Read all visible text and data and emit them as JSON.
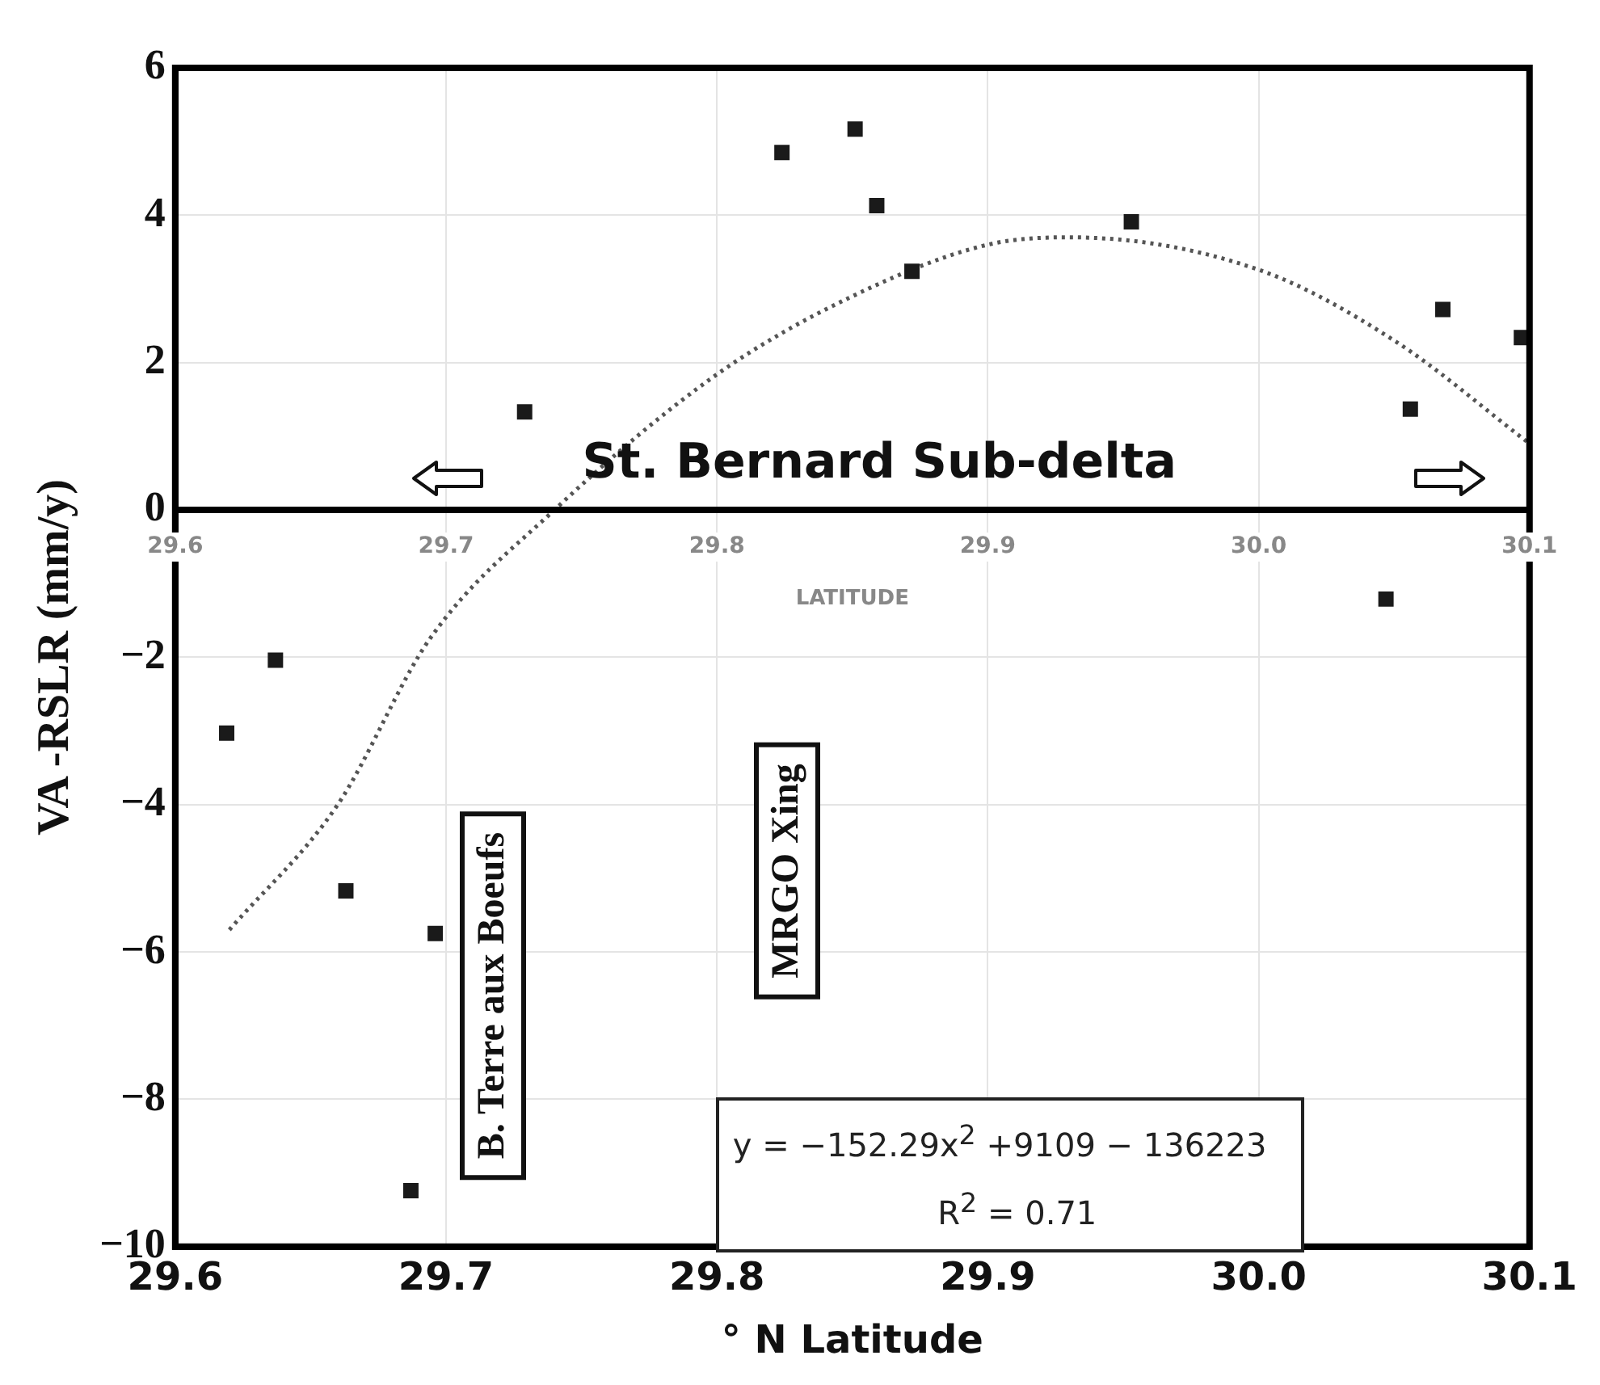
{
  "chart_data": {
    "type": "scatter",
    "xlabel": "° N Latitude",
    "ylabel": "VA -RSLR (mm/y)",
    "x2label": "LATITUDE",
    "xlim": [
      29.6,
      30.1
    ],
    "xticks": [
      29.6,
      29.7,
      29.8,
      29.9,
      {
        "value": 30,
        "label": "30.0"
      },
      30.1
    ],
    "x2lim": [
      29.6,
      30.1
    ],
    "x2ticks": [
      29.6,
      29.7,
      29.8,
      29.9,
      {
        "value": 30,
        "label": "30.0"
      },
      30.1
    ],
    "ylim": [
      -10,
      6
    ],
    "yticks": [
      {
        "value": -10,
        "label": "−10"
      },
      {
        "value": -8,
        "label": "−8"
      },
      {
        "value": -6,
        "label": "−6"
      },
      {
        "value": -4,
        "label": "−4"
      },
      {
        "value": -2,
        "label": "−2"
      },
      0,
      2,
      4,
      6
    ],
    "grid": true,
    "legend": false,
    "series": [
      {
        "type": "scatter",
        "color": "#1a1a1a",
        "marker": "square",
        "x": [
          29.729,
          29.824,
          29.851,
          29.859,
          29.872,
          29.953,
          30.056,
          30.068,
          30.097,
          30.047,
          29.619,
          29.637,
          29.663,
          29.696,
          29.687
        ],
        "values": [
          1.33,
          4.85,
          5.17,
          4.13,
          3.24,
          3.91,
          1.37,
          2.72,
          2.34,
          -1.21,
          -3.03,
          -2.04,
          -5.17,
          -5.75,
          -9.24
        ]
      },
      {
        "type": "line",
        "color": "#555555",
        "line_style": "dotted",
        "x": [
          29.62,
          29.66,
          29.694,
          29.74,
          29.8,
          29.85,
          29.9,
          29.93,
          30.0,
          30.05,
          30.1
        ],
        "values": [
          -5.7,
          -4.0,
          -1.75,
          0,
          1.84,
          2.9,
          3.6,
          3.7,
          3.26,
          2.3,
          0.9
        ]
      }
    ],
    "annotations": [
      "St. Bernard Sub-delta",
      "B. Terre aux Boeufs",
      "MRGO Xing",
      "y = −152.29x$^{2}$ +9109 − 136223",
      "R$^{2}$ = 0.71"
    ]
  }
}
